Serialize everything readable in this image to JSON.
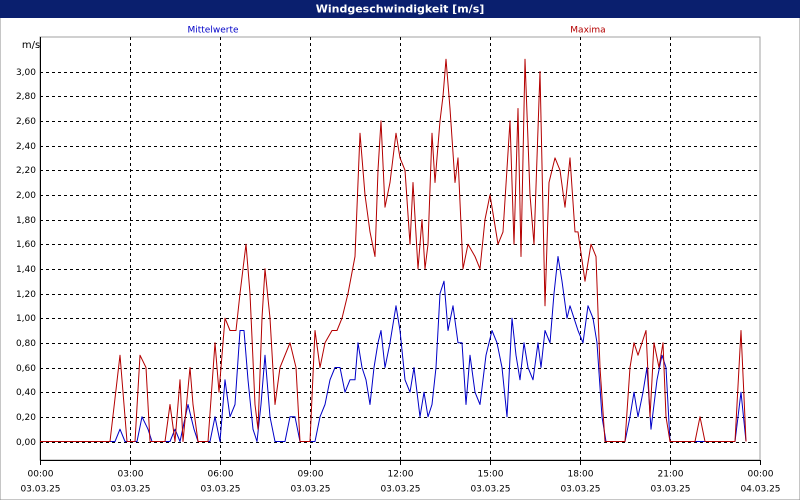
{
  "chart_data": {
    "type": "line",
    "title": "Windgeschwindigkeit [m/s]",
    "y_unit": "m/s",
    "xlim": [
      0,
      1440
    ],
    "ylim": [
      -0.15,
      3.28
    ],
    "grid": true,
    "xticks": [
      {
        "value": 0,
        "label": "00:00",
        "date": "03.03.25"
      },
      {
        "value": 180,
        "label": "03:00",
        "date": "03.03.25"
      },
      {
        "value": 360,
        "label": "06:00",
        "date": "03.03.25"
      },
      {
        "value": 540,
        "label": "09:00",
        "date": "03.03.25"
      },
      {
        "value": 720,
        "label": "12:00",
        "date": "03.03.25"
      },
      {
        "value": 900,
        "label": "15:00",
        "date": "03.03.25"
      },
      {
        "value": 1080,
        "label": "18:00",
        "date": "03.03.25"
      },
      {
        "value": 1260,
        "label": "21:00",
        "date": "03.03.25"
      },
      {
        "value": 1440,
        "label": "00:00",
        "date": "04.03.25"
      }
    ],
    "yticks": [
      {
        "value": 0,
        "label": "0,00"
      },
      {
        "value": 0.2,
        "label": "0,20"
      },
      {
        "value": 0.4,
        "label": "0,40"
      },
      {
        "value": 0.6,
        "label": "0,60"
      },
      {
        "value": 0.8,
        "label": "0,80"
      },
      {
        "value": 1.0,
        "label": "1,00"
      },
      {
        "value": 1.2,
        "label": "1,20"
      },
      {
        "value": 1.4,
        "label": "1,40"
      },
      {
        "value": 1.6,
        "label": "1,60"
      },
      {
        "value": 1.8,
        "label": "1,80"
      },
      {
        "value": 2.0,
        "label": "2,00"
      },
      {
        "value": 2.2,
        "label": "2,20"
      },
      {
        "value": 2.4,
        "label": "2,40"
      },
      {
        "value": 2.6,
        "label": "2,60"
      },
      {
        "value": 2.8,
        "label": "2,80"
      },
      {
        "value": 3.0,
        "label": "3,00"
      }
    ],
    "series": [
      {
        "name": "Mittelwerte",
        "color": "#0000c8",
        "x": [
          0,
          150,
          160,
          170,
          194,
          204,
          216,
          224,
          260,
          270,
          280,
          296,
          308,
          316,
          340,
          350,
          360,
          370,
          380,
          390,
          400,
          408,
          416,
          426,
          434,
          442,
          450,
          460,
          470,
          490,
          500,
          510,
          520,
          550,
          560,
          570,
          580,
          590,
          600,
          610,
          620,
          630,
          636,
          644,
          652,
          660,
          668,
          676,
          682,
          690,
          700,
          712,
          720,
          730,
          740,
          748,
          760,
          768,
          776,
          784,
          792,
          800,
          808,
          816,
          826,
          836,
          844,
          852,
          860,
          870,
          880,
          892,
          904,
          914,
          924,
          934,
          944,
          952,
          960,
          968,
          976,
          986,
          996,
          1002,
          1010,
          1020,
          1028,
          1036,
          1044,
          1054,
          1060,
          1068,
          1076,
          1086,
          1096,
          1106,
          1114,
          1124,
          1132,
          1170,
          1180,
          1188,
          1196,
          1206,
          1214,
          1222,
          1234,
          1244,
          1252,
          1260,
          1390,
          1402,
          1412
        ],
        "values": [
          0,
          0,
          0.1,
          0,
          0,
          0.2,
          0.1,
          0,
          0,
          0.1,
          0,
          0.3,
          0.1,
          0,
          0,
          0.2,
          0,
          0.5,
          0.2,
          0.3,
          0.9,
          0.9,
          0.5,
          0.1,
          0,
          0.3,
          0.7,
          0.2,
          0,
          0,
          0.2,
          0.2,
          0,
          0,
          0.2,
          0.3,
          0.5,
          0.6,
          0.6,
          0.4,
          0.5,
          0.5,
          0.8,
          0.6,
          0.5,
          0.3,
          0.6,
          0.8,
          0.9,
          0.6,
          0.8,
          1.1,
          0.9,
          0.5,
          0.4,
          0.6,
          0.2,
          0.4,
          0.2,
          0.3,
          0.6,
          1.2,
          1.3,
          0.9,
          1.1,
          0.8,
          0.8,
          0.3,
          0.7,
          0.4,
          0.3,
          0.7,
          0.9,
          0.8,
          0.6,
          0.2,
          1.0,
          0.7,
          0.5,
          0.8,
          0.6,
          0.5,
          0.8,
          0.6,
          0.9,
          0.8,
          1.2,
          1.5,
          1.3,
          1.0,
          1.1,
          1.0,
          0.9,
          0.8,
          1.1,
          1.0,
          0.8,
          0.2,
          0,
          0,
          0.2,
          0.4,
          0.2,
          0.4,
          0.6,
          0.1,
          0.5,
          0.7,
          0.6,
          0,
          0,
          0.4,
          0
        ]
      },
      {
        "name": "Maxima",
        "color": "#b40000",
        "x": [
          0,
          140,
          160,
          174,
          190,
          200,
          212,
          220,
          250,
          260,
          270,
          280,
          286,
          300,
          306,
          316,
          336,
          350,
          358,
          370,
          380,
          392,
          400,
          412,
          420,
          430,
          436,
          444,
          450,
          460,
          470,
          480,
          500,
          512,
          520,
          540,
          550,
          560,
          570,
          584,
          594,
          604,
          616,
          630,
          640,
          650,
          660,
          670,
          676,
          682,
          690,
          700,
          712,
          720,
          730,
          740,
          746,
          756,
          764,
          770,
          776,
          784,
          790,
          800,
          806,
          812,
          820,
          830,
          836,
          846,
          856,
          870,
          880,
          890,
          900,
          908,
          916,
          926,
          940,
          948,
          956,
          962,
          970,
          980,
          988,
          1000,
          1010,
          1018,
          1030,
          1040,
          1050,
          1060,
          1070,
          1076,
          1090,
          1102,
          1112,
          1120,
          1130,
          1170,
          1180,
          1188,
          1196,
          1204,
          1212,
          1220,
          1228,
          1238,
          1246,
          1252,
          1260,
          1310,
          1320,
          1330,
          1390,
          1402,
          1412
        ],
        "values": [
          0,
          0,
          0.7,
          0,
          0,
          0.7,
          0.6,
          0,
          0,
          0.3,
          0,
          0.5,
          0,
          0.6,
          0.3,
          0,
          0,
          0.8,
          0.4,
          1.0,
          0.9,
          0.9,
          1.2,
          1.6,
          1.2,
          0.3,
          0.1,
          1.0,
          1.4,
          1.0,
          0.3,
          0.6,
          0.8,
          0.6,
          0,
          0,
          0.9,
          0.6,
          0.8,
          0.9,
          0.9,
          1.0,
          1.2,
          1.5,
          2.5,
          2.0,
          1.7,
          1.5,
          2.2,
          2.6,
          1.9,
          2.1,
          2.5,
          2.3,
          2.2,
          1.6,
          2.1,
          1.4,
          1.8,
          1.4,
          1.6,
          2.5,
          2.1,
          2.6,
          2.8,
          3.1,
          2.7,
          2.1,
          2.3,
          1.4,
          1.6,
          1.5,
          1.4,
          1.8,
          2.0,
          1.8,
          1.6,
          1.7,
          2.6,
          1.6,
          2.7,
          1.5,
          3.1,
          2.0,
          1.6,
          3.0,
          1.1,
          2.1,
          2.3,
          2.2,
          1.9,
          2.3,
          1.7,
          1.7,
          1.3,
          1.6,
          1.5,
          0.6,
          0,
          0,
          0.6,
          0.8,
          0.7,
          0.8,
          0.9,
          0.2,
          0.8,
          0.6,
          0.8,
          0.2,
          0,
          0,
          0.2,
          0,
          0,
          0.9,
          0
        ]
      }
    ]
  }
}
